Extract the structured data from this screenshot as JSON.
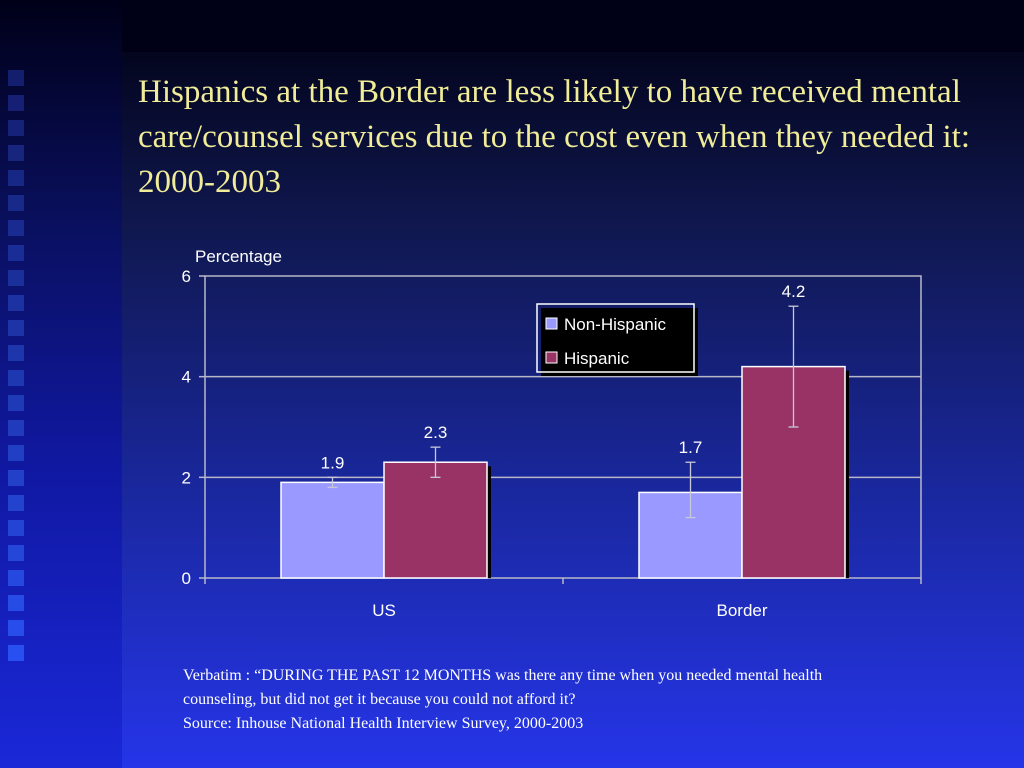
{
  "slide": {
    "title": "Hispanics at the Border are less likely to have received mental care/counsel services due to the cost even when they needed it: 2000-2003",
    "footnote": {
      "verbatim_line1": "Verbatim : “DURING THE PAST 12 MONTHS was there any time when you needed mental health",
      "verbatim_line2": "counseling, but did not get it because you could not afford it?",
      "source": "Source: Inhouse National Health Interview Survey, 2000-2003"
    }
  },
  "colors": {
    "non_hispanic": "#9999ff",
    "hispanic": "#993366",
    "grid": "#b8b8c8",
    "text": "#ffffff",
    "title": "#f0ec98"
  },
  "chart_data": {
    "type": "bar",
    "title": "",
    "xlabel": "",
    "ylabel": "Percentage",
    "ylim": [
      0,
      6
    ],
    "yticks": [
      0,
      2,
      4,
      6
    ],
    "grid": true,
    "legend_position": "top-center",
    "categories": [
      "US",
      "Border"
    ],
    "series": [
      {
        "name": "Non-Hispanic",
        "values": [
          1.9,
          1.7
        ],
        "error_low": [
          1.8,
          1.2
        ],
        "error_high": [
          2.0,
          2.3
        ]
      },
      {
        "name": "Hispanic",
        "values": [
          2.3,
          4.2
        ],
        "error_low": [
          2.0,
          3.0
        ],
        "error_high": [
          2.6,
          5.4
        ]
      }
    ]
  }
}
